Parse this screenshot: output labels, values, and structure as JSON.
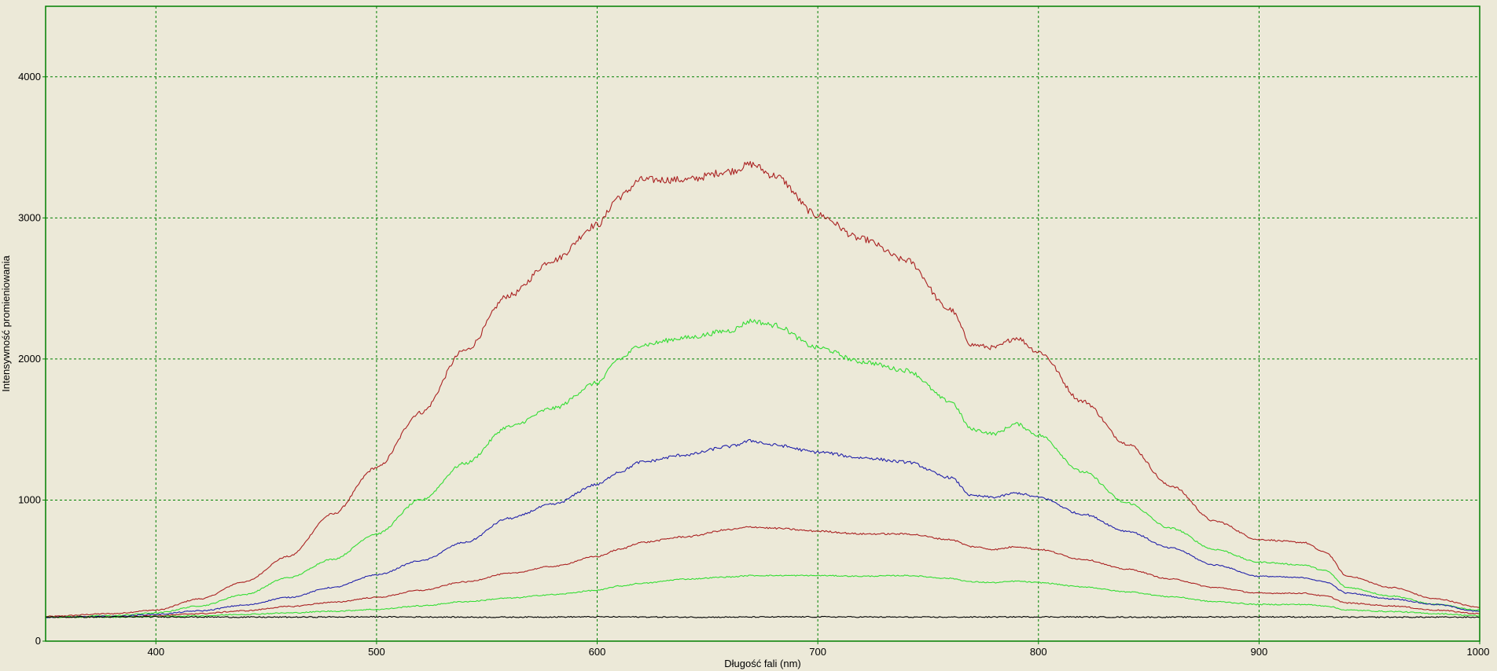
{
  "chart_data": {
    "type": "line",
    "title": "",
    "xlabel": "Długość fali (nm)",
    "ylabel": "Intensywność promieniowania",
    "xlim": [
      350,
      1000
    ],
    "ylim": [
      0,
      4500
    ],
    "x_ticks": [
      400,
      500,
      600,
      700,
      800,
      900,
      1000
    ],
    "y_ticks": [
      0,
      1000,
      2000,
      3000,
      4000
    ],
    "grid": true,
    "legend": "none",
    "colors": {
      "background": "#ece9d8",
      "frame": "#008000",
      "grid": "#008000"
    },
    "series": [
      {
        "color": "#aa2222",
        "x": [
          350,
          380,
          400,
          420,
          440,
          460,
          480,
          500,
          520,
          540,
          560,
          580,
          600,
          610,
          620,
          640,
          660,
          670,
          680,
          700,
          720,
          740,
          760,
          770,
          780,
          790,
          800,
          820,
          840,
          860,
          880,
          900,
          920,
          930,
          940,
          960,
          980,
          1000
        ],
        "y": [
          175,
          195,
          220,
          300,
          420,
          600,
          900,
          1230,
          1620,
          2060,
          2450,
          2700,
          2950,
          3150,
          3270,
          3270,
          3330,
          3380,
          3300,
          3020,
          2850,
          2700,
          2350,
          2100,
          2080,
          2150,
          2050,
          1700,
          1400,
          1100,
          850,
          720,
          700,
          630,
          460,
          380,
          300,
          240
        ]
      },
      {
        "color": "#33dd33",
        "x": [
          350,
          380,
          400,
          420,
          440,
          460,
          480,
          500,
          520,
          540,
          560,
          580,
          600,
          610,
          620,
          640,
          660,
          670,
          680,
          700,
          720,
          740,
          760,
          770,
          780,
          790,
          800,
          820,
          840,
          860,
          880,
          900,
          920,
          930,
          940,
          960,
          980,
          1000
        ],
        "y": [
          170,
          180,
          200,
          250,
          330,
          450,
          580,
          760,
          1000,
          1260,
          1520,
          1650,
          1830,
          2000,
          2100,
          2150,
          2200,
          2270,
          2240,
          2080,
          1980,
          1920,
          1700,
          1500,
          1470,
          1540,
          1460,
          1200,
          980,
          800,
          650,
          560,
          540,
          500,
          380,
          320,
          260,
          220
        ]
      },
      {
        "color": "#2222aa",
        "x": [
          350,
          380,
          400,
          420,
          440,
          460,
          480,
          500,
          520,
          540,
          560,
          580,
          600,
          610,
          620,
          640,
          660,
          670,
          680,
          700,
          720,
          740,
          760,
          770,
          780,
          790,
          800,
          820,
          840,
          860,
          880,
          900,
          920,
          930,
          940,
          960,
          980,
          1000
        ],
        "y": [
          170,
          175,
          190,
          215,
          255,
          310,
          380,
          470,
          570,
          700,
          870,
          970,
          1110,
          1200,
          1270,
          1320,
          1380,
          1420,
          1390,
          1340,
          1300,
          1270,
          1160,
          1030,
          1020,
          1050,
          1020,
          900,
          780,
          660,
          540,
          460,
          450,
          420,
          340,
          300,
          260,
          210
        ]
      },
      {
        "color": "#aa2222",
        "x": [
          350,
          380,
          400,
          420,
          440,
          460,
          480,
          500,
          520,
          540,
          560,
          580,
          600,
          610,
          620,
          640,
          660,
          670,
          680,
          700,
          720,
          740,
          760,
          770,
          780,
          790,
          800,
          820,
          840,
          860,
          880,
          900,
          920,
          930,
          940,
          960,
          980,
          1000
        ],
        "y": [
          170,
          172,
          180,
          195,
          215,
          245,
          275,
          310,
          360,
          420,
          480,
          530,
          600,
          650,
          700,
          740,
          790,
          810,
          800,
          780,
          760,
          760,
          720,
          670,
          650,
          670,
          650,
          580,
          510,
          440,
          380,
          340,
          340,
          320,
          270,
          250,
          220,
          195
        ]
      },
      {
        "color": "#33dd33",
        "x": [
          350,
          380,
          400,
          420,
          440,
          460,
          480,
          500,
          520,
          540,
          560,
          580,
          600,
          610,
          620,
          640,
          660,
          670,
          680,
          700,
          720,
          740,
          760,
          770,
          780,
          790,
          800,
          820,
          840,
          860,
          880,
          900,
          920,
          930,
          940,
          960,
          980,
          1000
        ],
        "y": [
          170,
          170,
          175,
          180,
          190,
          200,
          212,
          225,
          250,
          280,
          305,
          330,
          360,
          390,
          410,
          440,
          455,
          465,
          465,
          465,
          460,
          465,
          445,
          420,
          415,
          425,
          415,
          385,
          350,
          315,
          280,
          260,
          260,
          250,
          220,
          210,
          195,
          180
        ]
      },
      {
        "color": "#000000",
        "x": [
          350,
          400,
          450,
          500,
          550,
          600,
          650,
          700,
          750,
          800,
          850,
          900,
          950,
          1000
        ],
        "y": [
          170,
          172,
          170,
          172,
          170,
          172,
          170,
          172,
          170,
          172,
          170,
          172,
          170,
          170
        ]
      }
    ]
  }
}
